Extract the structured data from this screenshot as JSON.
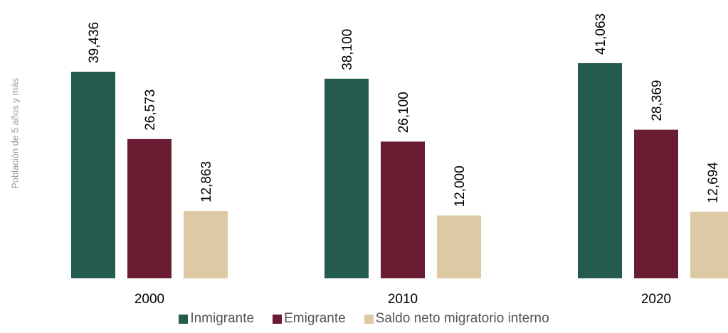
{
  "chart_data": {
    "type": "bar",
    "title": "",
    "xlabel": "",
    "ylabel": "Población de 5 años y más",
    "categories": [
      "2000",
      "2010",
      "2020"
    ],
    "series": [
      {
        "name": "Inmigrante",
        "color": "#235B4E",
        "values": [
          39436,
          38100,
          41063
        ],
        "labels": [
          "39,436",
          "38,100",
          "41,063"
        ]
      },
      {
        "name": "Emigrante",
        "color": "#691C32",
        "values": [
          26573,
          26100,
          28369
        ],
        "labels": [
          "26,573",
          "26,100",
          "28,369"
        ]
      },
      {
        "name": "Saldo neto migratorio interno",
        "color": "#DDC9A3",
        "values": [
          12863,
          12000,
          12694
        ],
        "labels": [
          "12,863",
          "12,000",
          "12,694"
        ]
      }
    ],
    "ylim": [
      0,
      55000
    ],
    "grid": false,
    "legend_position": "bottom"
  }
}
